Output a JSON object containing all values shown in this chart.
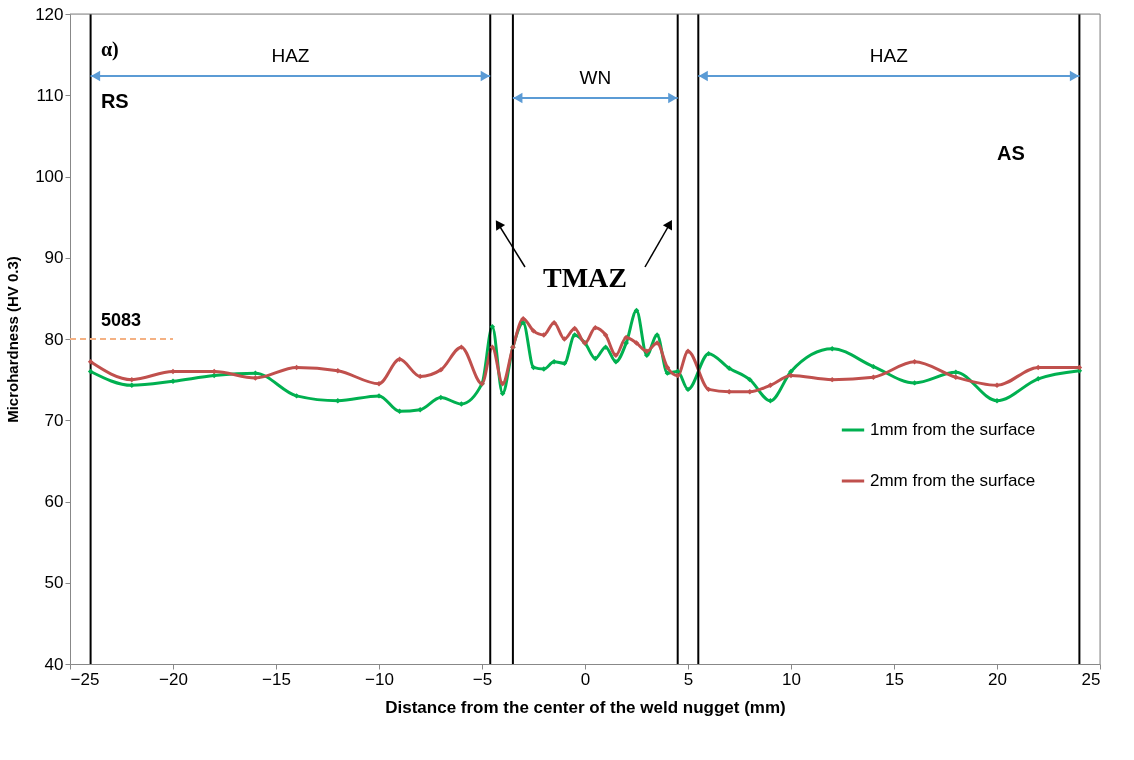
{
  "chart_data": {
    "type": "line",
    "xlabel": "Distance from the center of the weld nugget (mm)",
    "ylabel": "Microhardness (HV 0.3)",
    "xlim": [
      -25,
      25
    ],
    "xticks": [
      -25,
      -20,
      -15,
      -10,
      -5,
      0,
      5,
      10,
      15,
      20,
      25
    ],
    "ylim": [
      40,
      120
    ],
    "yticks": [
      40,
      50,
      60,
      70,
      80,
      90,
      100,
      110,
      120
    ],
    "grid": false,
    "legend": "right",
    "marker": "diamond",
    "line_style": "solid",
    "series": [
      {
        "name": "1mm from the surface",
        "color": "#00b050",
        "x": [
          -24,
          -22,
          -20,
          -18,
          -16,
          -14,
          -12,
          -10,
          -9,
          -8,
          -7,
          -6,
          -5,
          -4.5,
          -4,
          -3.5,
          -3,
          -2.5,
          -2,
          -1.5,
          -1,
          -0.5,
          0,
          0.5,
          1,
          1.5,
          2,
          2.5,
          3,
          3.5,
          4,
          4.5,
          5,
          6,
          7,
          8,
          9,
          10,
          12,
          14,
          16,
          18,
          20,
          22,
          24
        ],
        "values": [
          76,
          74.3,
          74.8,
          75.5,
          75.8,
          73,
          72.4,
          73,
          71.1,
          71.3,
          72.8,
          72,
          74.5,
          81.5,
          73.3,
          79,
          82,
          76.5,
          76.3,
          77.2,
          77,
          80.5,
          79.5,
          77.6,
          79,
          77.2,
          79.5,
          83.5,
          78,
          80.5,
          75.8,
          76,
          73.8,
          78.2,
          76.4,
          75,
          72.4,
          76,
          78.8,
          76.6,
          74.6,
          75.9,
          72.4,
          75.1,
          76.1
        ]
      },
      {
        "name": "2mm from the surface",
        "color": "#c0504d",
        "x": [
          -24,
          -22,
          -20,
          -18,
          -16,
          -14,
          -12,
          -10,
          -9,
          -8,
          -7,
          -6,
          -5,
          -4.5,
          -4,
          -3.5,
          -3,
          -2.5,
          -2,
          -1.5,
          -1,
          -0.5,
          0,
          0.5,
          1,
          1.5,
          2,
          2.5,
          3,
          3.5,
          4,
          4.5,
          5,
          6,
          7,
          8,
          9,
          10,
          12,
          14,
          16,
          18,
          20,
          22,
          24
        ],
        "values": [
          77.2,
          75,
          76,
          76,
          75.2,
          76.5,
          76.1,
          74.5,
          77.5,
          75.4,
          76.2,
          79,
          74.5,
          79,
          74.5,
          79,
          82.5,
          81,
          80.5,
          82,
          80,
          81.3,
          79.5,
          81.4,
          80.5,
          78,
          80.2,
          79.5,
          78.5,
          79.5,
          76.5,
          75.5,
          78.5,
          73.8,
          73.5,
          73.5,
          74.3,
          75.5,
          75,
          75.3,
          77.2,
          75.3,
          74.3,
          76.5,
          76.5
        ]
      }
    ],
    "ref_lines": [
      {
        "axis": "x",
        "value": -24,
        "color": "#000000"
      },
      {
        "axis": "x",
        "value": -4.6,
        "color": "#000000"
      },
      {
        "axis": "x",
        "value": -3.5,
        "color": "#000000"
      },
      {
        "axis": "x",
        "value": 4.5,
        "color": "#000000"
      },
      {
        "axis": "x",
        "value": 5.5,
        "color": "#000000"
      },
      {
        "axis": "x",
        "value": 24,
        "color": "#000000"
      },
      {
        "axis": "y",
        "value": 80,
        "color": "#f4b183",
        "line_style": "dashed"
      }
    ],
    "annotations": [
      "α)",
      "HAZ",
      "WN",
      "HAZ",
      "RS",
      "AS",
      "TMAZ",
      "5083"
    ]
  }
}
